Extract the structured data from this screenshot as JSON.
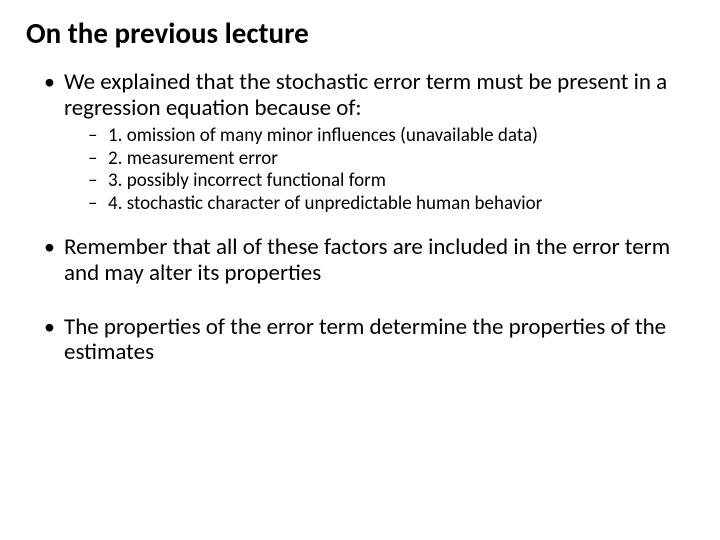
{
  "slide": {
    "title": "On the previous lecture",
    "bullet1": "We explained that the stochastic error term must be present in a regression equation because of:",
    "sub": {
      "s1": "1. omission of many minor influences (unavailable data)",
      "s2": "2. measurement error",
      "s3": "3. possibly incorrect functional form",
      "s4": "4. stochastic character of unpredictable human behavior"
    },
    "bullet2": "Remember that all of these factors are included in the error term and may alter its properties",
    "bullet3": "The properties of the error term determine the properties of the estimates"
  },
  "style": {
    "background_color": "#ffffff",
    "text_color": "#000000",
    "title_fontsize": 29,
    "title_fontweight": 700,
    "body_fontsize": 23,
    "sub_fontsize": 19,
    "font_family": "Calibri"
  }
}
